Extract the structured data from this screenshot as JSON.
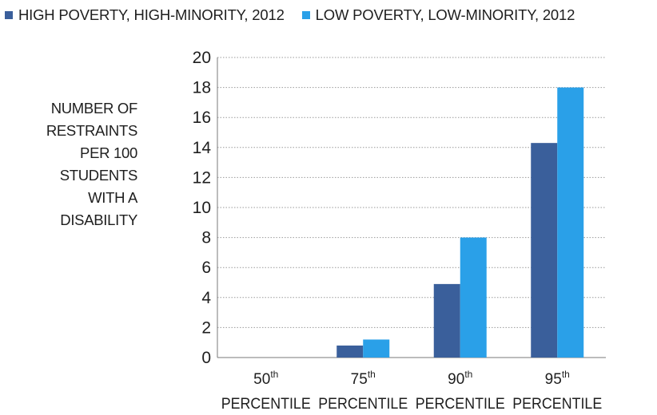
{
  "colors": {
    "series_high": "#3a5f9b",
    "series_low": "#2aa0e8",
    "grid": "#9a9a9a",
    "axis": "#7a7a7a"
  },
  "legend": {
    "items": [
      {
        "label": "HIGH POVERTY, HIGH-MINORITY, 2012",
        "color": "#3a5f9b"
      },
      {
        "label": "LOW POVERTY, LOW-MINORITY, 2012",
        "color": "#2aa0e8"
      }
    ]
  },
  "chart_data": {
    "type": "bar",
    "title": "",
    "ylabel": "NUMBER OF\nRESTRAINTS\nPER 100\nSTUDENTS\nWITH A\nDISABILITY",
    "xlabel": "",
    "categories": [
      {
        "num": "50",
        "sup": "th",
        "label": "PERCENTILE"
      },
      {
        "num": "75",
        "sup": "th",
        "label": "PERCENTILE"
      },
      {
        "num": "90",
        "sup": "th",
        "label": "PERCENTILE"
      },
      {
        "num": "95",
        "sup": "th",
        "label": "PERCENTILE"
      }
    ],
    "series": [
      {
        "name": "HIGH POVERTY, HIGH-MINORITY, 2012",
        "values": [
          0,
          0.8,
          4.9,
          14.3
        ]
      },
      {
        "name": "LOW POVERTY, LOW-MINORITY, 2012",
        "values": [
          0,
          1.2,
          8.0,
          18.0
        ]
      }
    ],
    "ylim": [
      0,
      20
    ],
    "yticks": [
      0,
      2,
      4,
      6,
      8,
      10,
      12,
      14,
      16,
      18,
      20
    ],
    "grid": true,
    "legend_position": "top-left"
  }
}
